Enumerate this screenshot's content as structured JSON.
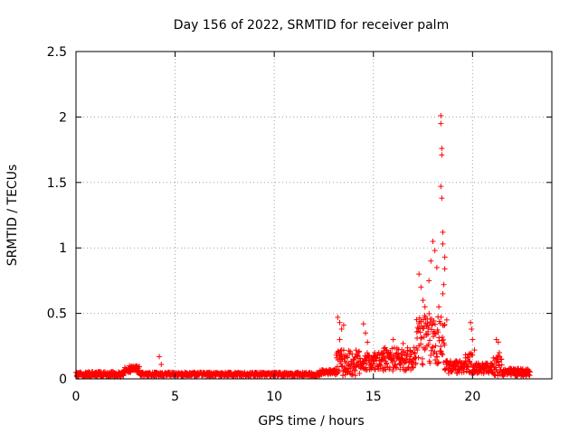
{
  "chart_data": {
    "type": "scatter",
    "title": "Day 156 of 2022, SRMTID for receiver palm",
    "xlabel": "GPS time / hours",
    "ylabel": "SRMTID / TECUs",
    "xlim": [
      0,
      24
    ],
    "ylim": [
      0,
      2.5
    ],
    "xticks": [
      "0",
      "5",
      "10",
      "15",
      "20"
    ],
    "xtick_values": [
      0,
      5,
      10,
      15,
      20
    ],
    "yticks": [
      "0",
      "0.5",
      "1",
      "1.5",
      "2",
      "2.5"
    ],
    "ytick_values": [
      0,
      0.5,
      1,
      1.5,
      2,
      2.5
    ],
    "grid": true,
    "marker": "plus",
    "series": [
      {
        "name": "SRMTID",
        "color": "#ff0000",
        "baseline_segments": [
          {
            "x": [
              0.0,
              2.4
            ],
            "base": 0.035,
            "spread": 0.02
          },
          {
            "x": [
              2.4,
              3.2
            ],
            "base": 0.07,
            "spread": 0.03
          },
          {
            "x": [
              3.2,
              12.3
            ],
            "base": 0.035,
            "spread": 0.015
          },
          {
            "x": [
              12.3,
              13.1
            ],
            "base": 0.05,
            "spread": 0.02
          },
          {
            "x": [
              13.1,
              14.3
            ],
            "base": 0.12,
            "spread": 0.1
          },
          {
            "x": [
              14.3,
              15.5
            ],
            "base": 0.13,
            "spread": 0.07
          },
          {
            "x": [
              15.5,
              17.1
            ],
            "base": 0.15,
            "spread": 0.09
          },
          {
            "x": [
              17.1,
              18.6
            ],
            "base": 0.3,
            "spread": 0.2
          },
          {
            "x": [
              18.6,
              19.5
            ],
            "base": 0.09,
            "spread": 0.05
          },
          {
            "x": [
              19.5,
              20.0
            ],
            "base": 0.12,
            "spread": 0.08
          },
          {
            "x": [
              20.0,
              21.0
            ],
            "base": 0.08,
            "spread": 0.04
          },
          {
            "x": [
              21.0,
              21.5
            ],
            "base": 0.1,
            "spread": 0.08
          },
          {
            "x": [
              21.5,
              22.9
            ],
            "base": 0.05,
            "spread": 0.03
          }
        ],
        "notable_points": [
          {
            "x": 2.7,
            "y": 0.1
          },
          {
            "x": 4.2,
            "y": 0.17
          },
          {
            "x": 4.3,
            "y": 0.11
          },
          {
            "x": 13.2,
            "y": 0.47
          },
          {
            "x": 13.3,
            "y": 0.43
          },
          {
            "x": 13.4,
            "y": 0.38
          },
          {
            "x": 13.5,
            "y": 0.41
          },
          {
            "x": 13.3,
            "y": 0.3
          },
          {
            "x": 13.4,
            "y": 0.22
          },
          {
            "x": 14.5,
            "y": 0.42
          },
          {
            "x": 14.6,
            "y": 0.35
          },
          {
            "x": 14.7,
            "y": 0.28
          },
          {
            "x": 16.0,
            "y": 0.3
          },
          {
            "x": 16.5,
            "y": 0.27
          },
          {
            "x": 17.3,
            "y": 0.8
          },
          {
            "x": 17.4,
            "y": 0.7
          },
          {
            "x": 17.5,
            "y": 0.6
          },
          {
            "x": 17.6,
            "y": 0.55
          },
          {
            "x": 17.8,
            "y": 0.75
          },
          {
            "x": 17.9,
            "y": 0.9
          },
          {
            "x": 18.0,
            "y": 1.05
          },
          {
            "x": 18.1,
            "y": 0.98
          },
          {
            "x": 18.2,
            "y": 0.85
          },
          {
            "x": 18.4,
            "y": 2.01
          },
          {
            "x": 18.4,
            "y": 1.95
          },
          {
            "x": 18.45,
            "y": 1.76
          },
          {
            "x": 18.45,
            "y": 1.71
          },
          {
            "x": 18.4,
            "y": 1.47
          },
          {
            "x": 18.45,
            "y": 1.38
          },
          {
            "x": 18.5,
            "y": 1.12
          },
          {
            "x": 18.5,
            "y": 1.03
          },
          {
            "x": 18.6,
            "y": 0.93
          },
          {
            "x": 18.6,
            "y": 0.84
          },
          {
            "x": 18.55,
            "y": 0.72
          },
          {
            "x": 18.5,
            "y": 0.65
          },
          {
            "x": 18.7,
            "y": 0.45
          },
          {
            "x": 18.3,
            "y": 0.55
          },
          {
            "x": 19.9,
            "y": 0.43
          },
          {
            "x": 19.95,
            "y": 0.38
          },
          {
            "x": 20.0,
            "y": 0.3
          },
          {
            "x": 20.1,
            "y": 0.22
          },
          {
            "x": 21.2,
            "y": 0.3
          },
          {
            "x": 21.3,
            "y": 0.28
          },
          {
            "x": 21.35,
            "y": 0.2
          }
        ]
      }
    ]
  }
}
